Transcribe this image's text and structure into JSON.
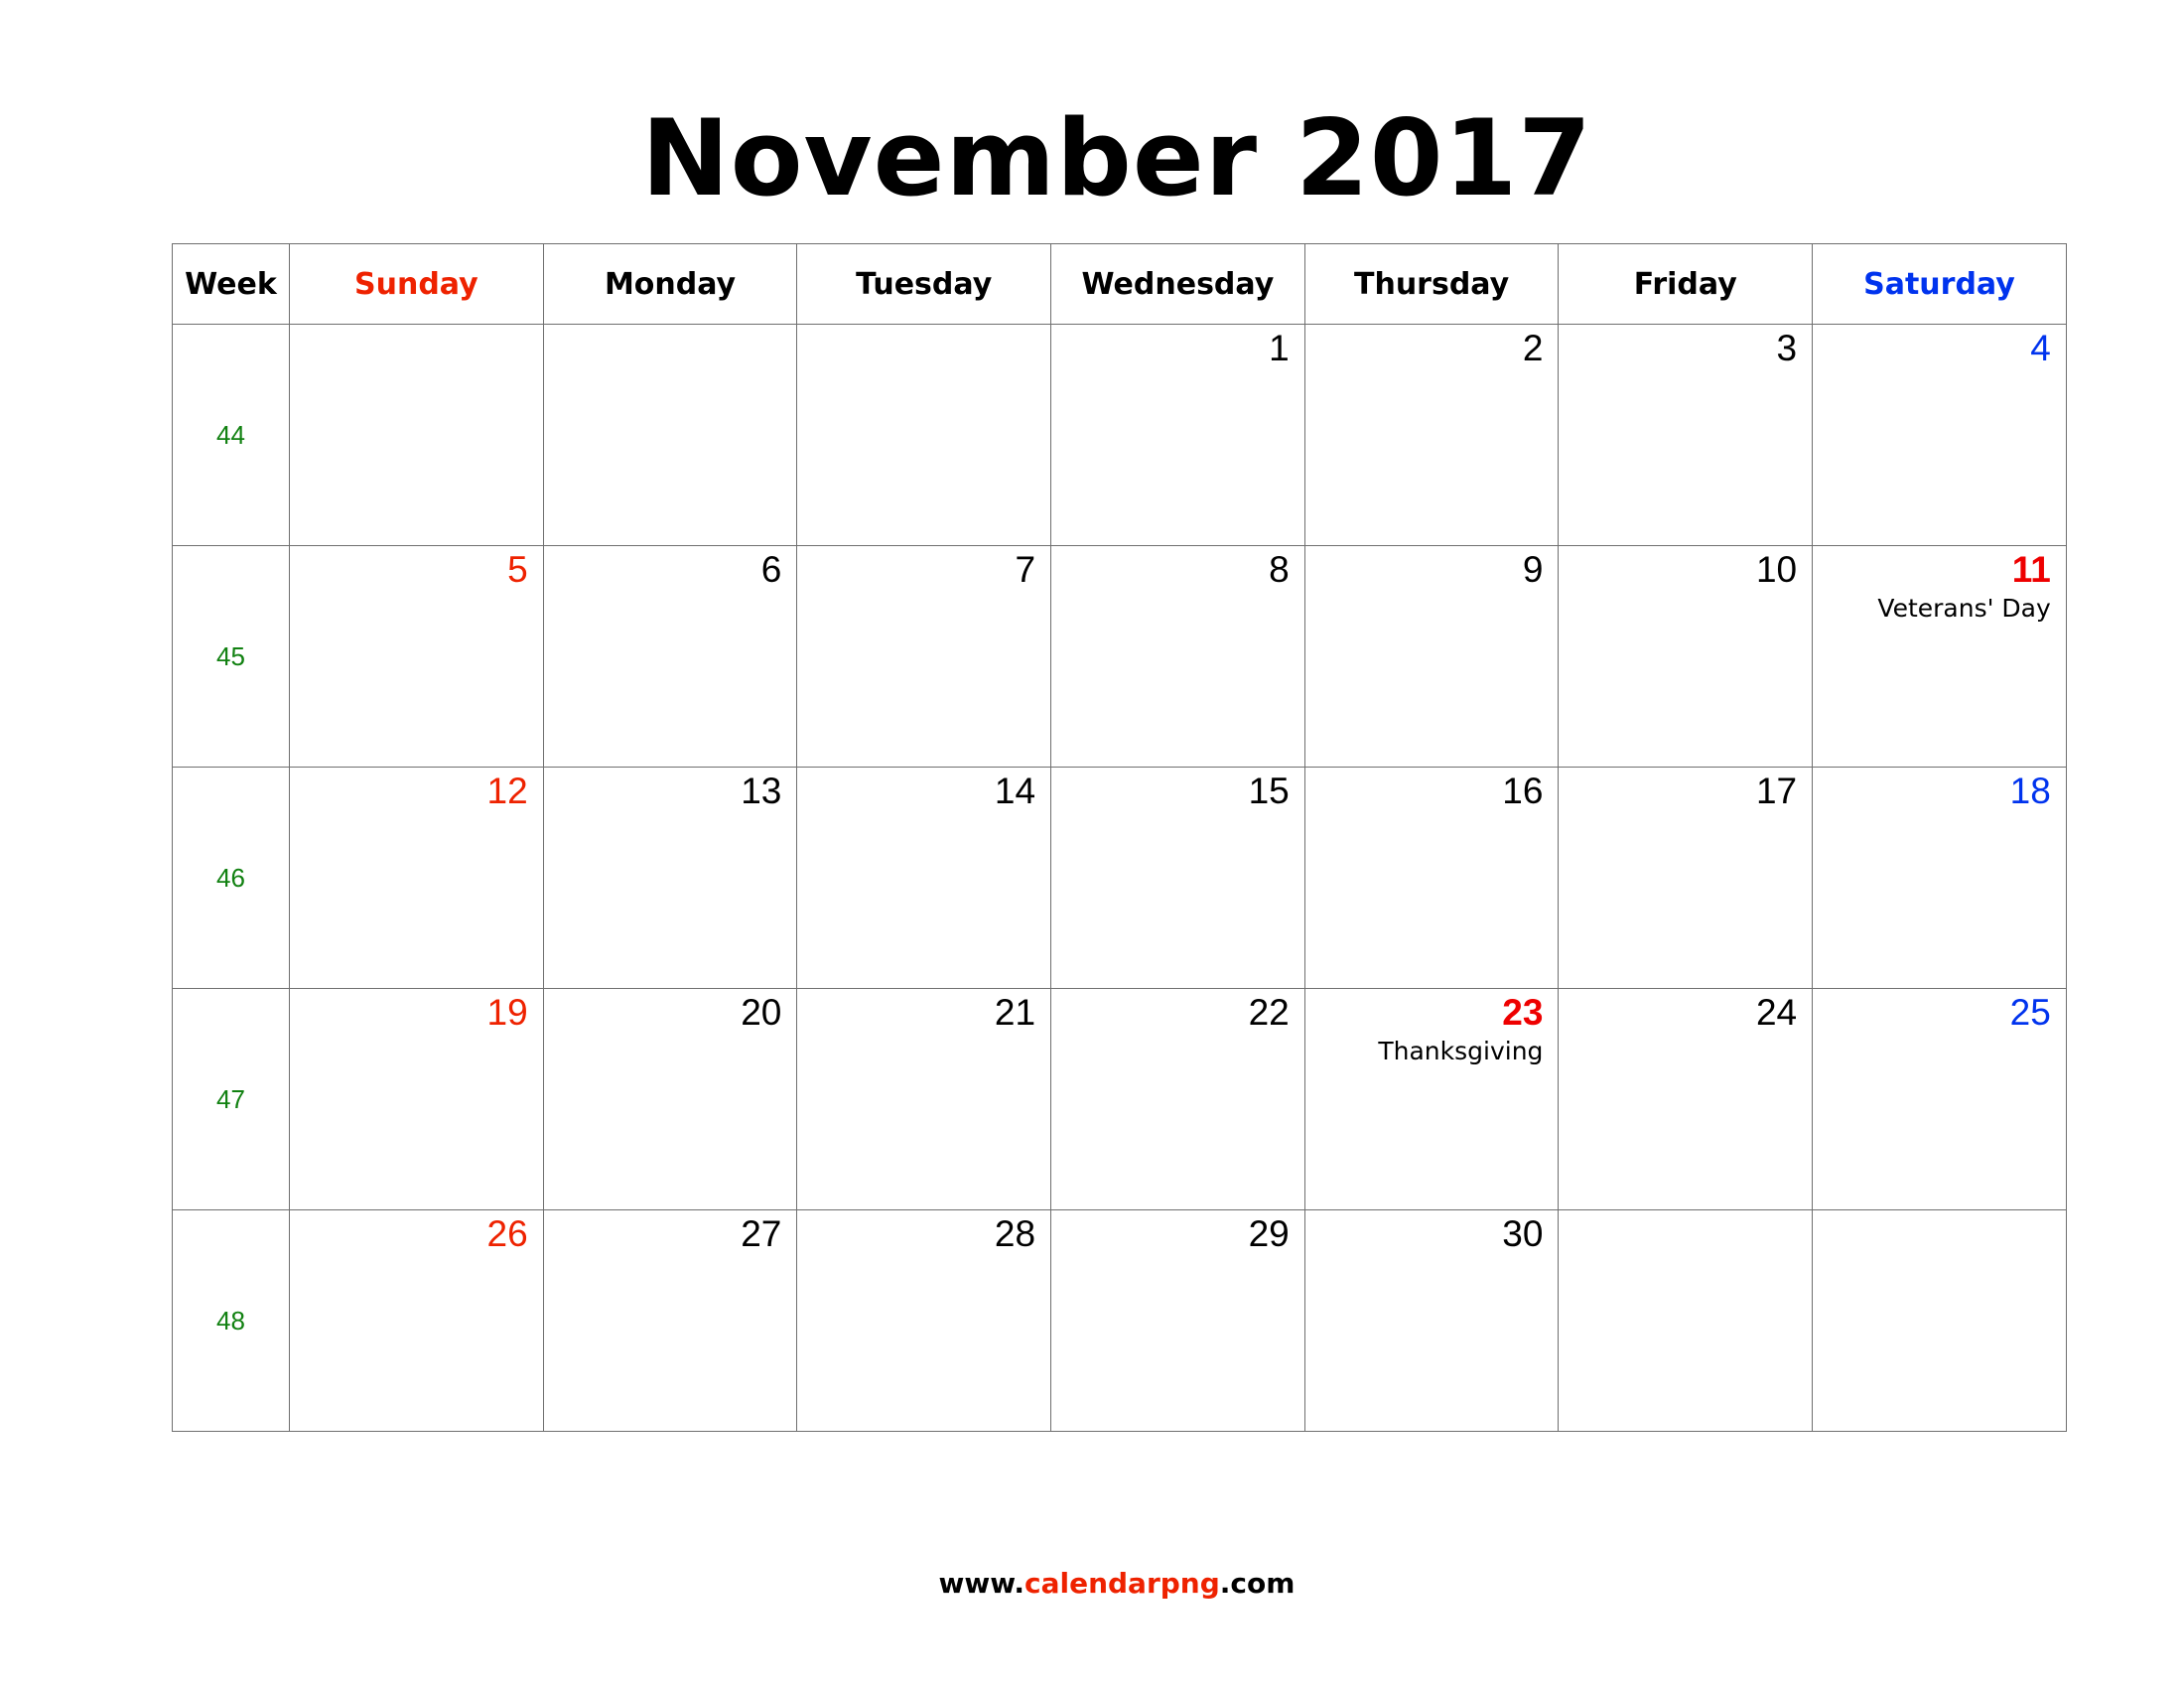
{
  "title": "November 2017",
  "colors": {
    "sunday": "#ee2200",
    "saturday": "#0033ee",
    "holiday": "#ee0000",
    "weekday": "#000000",
    "week_number": "#118111",
    "grid": "#6f6f6f"
  },
  "header": {
    "week": "Week",
    "days": [
      "Sunday",
      "Monday",
      "Tuesday",
      "Wednesday",
      "Thursday",
      "Friday",
      "Saturday"
    ]
  },
  "weeks": [
    {
      "number": "44",
      "days": [
        "",
        "",
        "",
        "1",
        "2",
        "3",
        "4"
      ]
    },
    {
      "number": "45",
      "days": [
        "5",
        "6",
        "7",
        "8",
        "9",
        "10",
        "11"
      ]
    },
    {
      "number": "46",
      "days": [
        "12",
        "13",
        "14",
        "15",
        "16",
        "17",
        "18"
      ]
    },
    {
      "number": "47",
      "days": [
        "19",
        "20",
        "21",
        "22",
        "23",
        "24",
        "25"
      ]
    },
    {
      "number": "48",
      "days": [
        "26",
        "27",
        "28",
        "29",
        "30",
        "",
        ""
      ]
    }
  ],
  "holidays": [
    {
      "week_index": 1,
      "day_index": 6,
      "name": "Veterans' Day"
    },
    {
      "week_index": 3,
      "day_index": 4,
      "name": "Thanksgiving"
    }
  ],
  "footer": {
    "prefix": "www.",
    "brand": "calendarpng",
    "suffix": ".com"
  }
}
